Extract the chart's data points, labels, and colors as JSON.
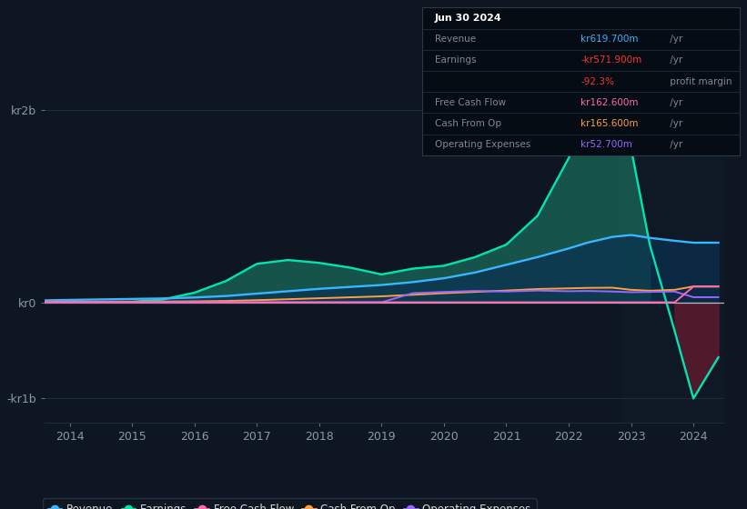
{
  "background_color": "#0e1621",
  "plot_bg_color": "#0e1621",
  "colors": {
    "revenue": "#38b6ff",
    "earnings": "#00e5b0",
    "free_cash_flow": "#ff69b4",
    "cash_from_op": "#ffa040",
    "operating_expenses": "#9966ff"
  },
  "legend_labels": [
    "Revenue",
    "Earnings",
    "Free Cash Flow",
    "Cash From Op",
    "Operating Expenses"
  ],
  "years": [
    2013.6,
    2014.0,
    2014.5,
    2015.0,
    2015.5,
    2016.0,
    2016.5,
    2017.0,
    2017.5,
    2018.0,
    2018.5,
    2019.0,
    2019.5,
    2020.0,
    2020.5,
    2021.0,
    2021.5,
    2022.0,
    2022.3,
    2022.7,
    2023.0,
    2023.3,
    2023.7,
    2024.0,
    2024.4
  ],
  "revenue_m": [
    20,
    25,
    30,
    35,
    40,
    50,
    65,
    90,
    115,
    140,
    160,
    180,
    210,
    250,
    310,
    390,
    470,
    560,
    620,
    680,
    700,
    670,
    640,
    620,
    620
  ],
  "earnings_m": [
    5,
    5,
    5,
    5,
    30,
    100,
    220,
    400,
    440,
    410,
    360,
    290,
    350,
    380,
    470,
    600,
    900,
    1500,
    2000,
    2050,
    1600,
    600,
    -300,
    -1000,
    -572
  ],
  "fcf_m": [
    0,
    0,
    0,
    0,
    0,
    0,
    0,
    0,
    0,
    0,
    0,
    0,
    0,
    0,
    0,
    0,
    0,
    0,
    0,
    0,
    0,
    0,
    0,
    163,
    163
  ],
  "cashop_m": [
    5,
    5,
    6,
    7,
    8,
    10,
    14,
    22,
    32,
    42,
    52,
    62,
    78,
    95,
    108,
    122,
    138,
    145,
    150,
    152,
    130,
    120,
    130,
    165,
    165
  ],
  "opex_m": [
    0,
    0,
    0,
    0,
    0,
    0,
    0,
    0,
    0,
    0,
    0,
    0,
    95,
    108,
    118,
    112,
    122,
    115,
    118,
    112,
    105,
    108,
    112,
    53,
    53
  ],
  "xlim": [
    2013.6,
    2024.5
  ],
  "ylim_b": [
    -1.25,
    2.35
  ],
  "shade_start": 2022.85,
  "grid_color": "#1e2d3d",
  "zero_line_color": "#cccccc",
  "tick_color": "#8899aa",
  "tooltip_bg": "#060c14",
  "tooltip_border": "#2a3a4a",
  "label_color": "#7a8a9a",
  "white_color": "#dddddd",
  "rev_color": "#38b6ff",
  "earn_neg_color": "#ff3344",
  "earn_pos_color": "#ff3344"
}
